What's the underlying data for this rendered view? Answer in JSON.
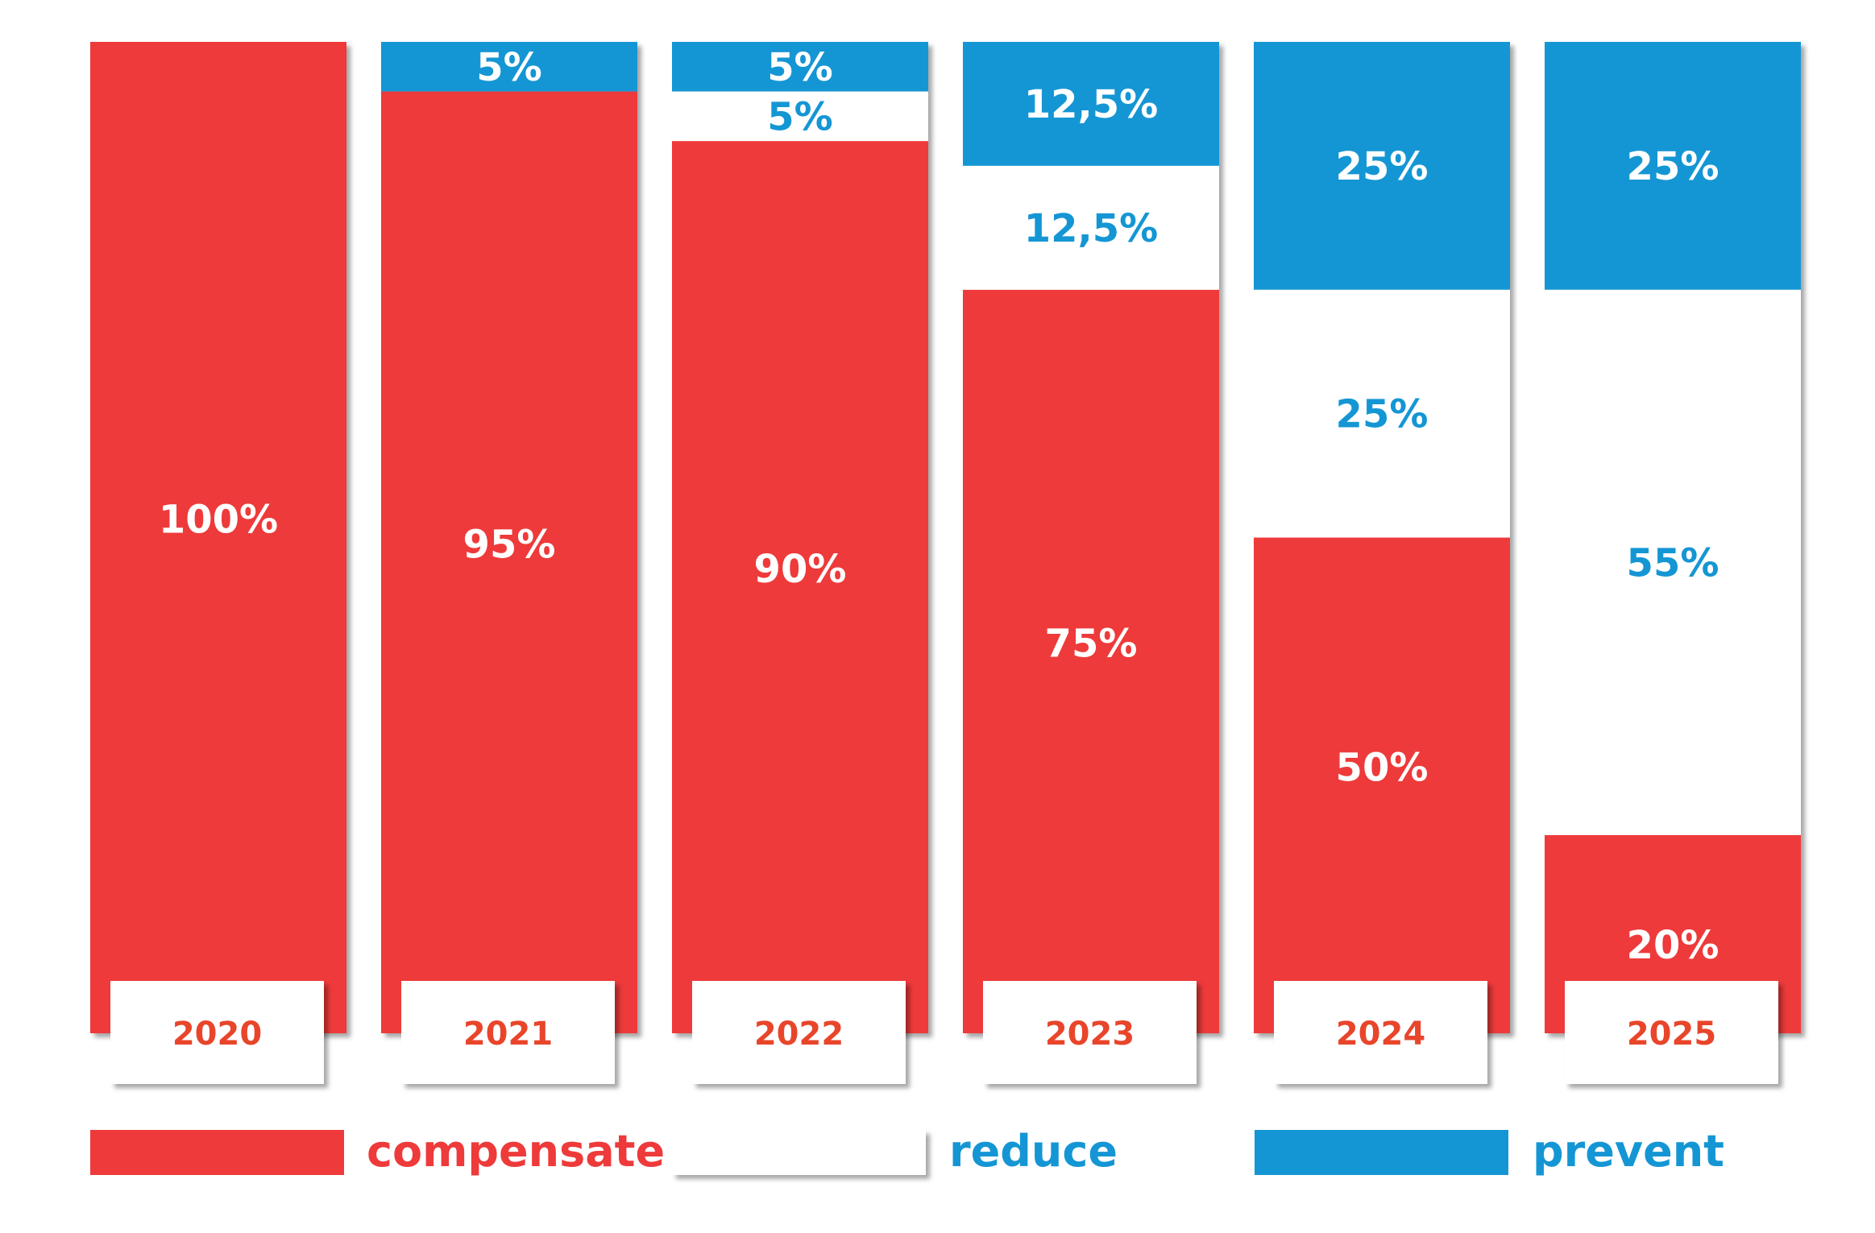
{
  "colors": {
    "compensate": "#ee3a3a",
    "reduce": "#ffffff",
    "prevent": "#1596d4",
    "year_text": "#e8452b",
    "label_on_red": "#ffffff",
    "label_on_white": "#1596d4",
    "label_on_blue": "#ffffff"
  },
  "chart_data": {
    "type": "bar",
    "stacked": true,
    "title": "",
    "xlabel": "",
    "ylabel": "",
    "ylim": [
      0,
      100
    ],
    "grid": false,
    "legend_position": "bottom",
    "categories": [
      "2020",
      "2021",
      "2022",
      "2023",
      "2024",
      "2025"
    ],
    "series": [
      {
        "name": "compensate",
        "values": [
          100,
          95,
          90,
          75,
          50,
          20
        ],
        "labels": [
          "100%",
          "95%",
          "90%",
          "75%",
          "50%",
          "20%"
        ]
      },
      {
        "name": "reduce",
        "values": [
          0,
          0,
          5,
          12.5,
          25,
          55
        ],
        "labels": [
          "",
          "",
          "5%",
          "12,5%",
          "25%",
          "55%"
        ]
      },
      {
        "name": "prevent",
        "values": [
          0,
          5,
          5,
          12.5,
          25,
          25
        ],
        "labels": [
          "",
          "5%",
          "5%",
          "12,5%",
          "25%",
          "25%"
        ]
      }
    ]
  }
}
